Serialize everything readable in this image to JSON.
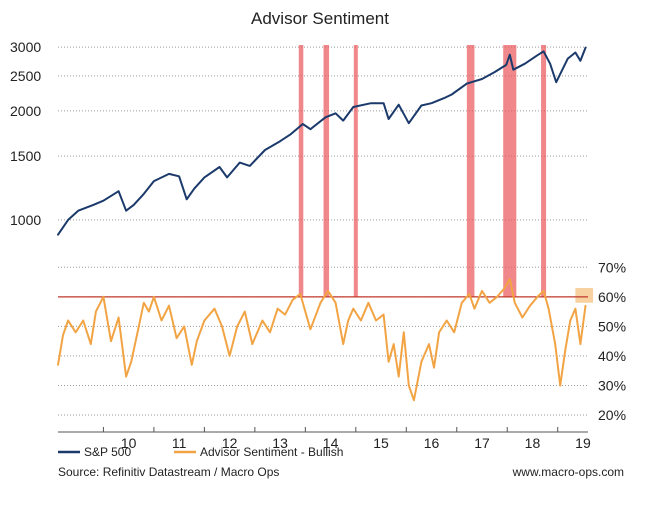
{
  "chart_data": {
    "type": "line",
    "title": "Advisor Sentiment",
    "x_ticks": [
      "10",
      "11",
      "12",
      "13",
      "14",
      "15",
      "16",
      "17",
      "18",
      "19"
    ],
    "x_range": [
      2009.1,
      2019.6
    ],
    "left_axis": {
      "scale": "log",
      "range": [
        800,
        3100
      ],
      "ticks": [
        "3000",
        "2500",
        "2000",
        "1500",
        "1000"
      ]
    },
    "right_axis": {
      "range": [
        20,
        85
      ],
      "ticks": [
        "70%",
        "60%",
        "50%",
        "40%",
        "30%",
        "20%"
      ]
    },
    "threshold": {
      "label": "60%",
      "value": 60
    },
    "series": [
      {
        "name": "S&P 500",
        "color": "#1b3a6b",
        "axis": "left",
        "points": [
          [
            2009.1,
            910
          ],
          [
            2009.3,
            1000
          ],
          [
            2009.5,
            1060
          ],
          [
            2009.8,
            1100
          ],
          [
            2010.0,
            1130
          ],
          [
            2010.3,
            1200
          ],
          [
            2010.45,
            1060
          ],
          [
            2010.6,
            1100
          ],
          [
            2010.8,
            1180
          ],
          [
            2011.0,
            1280
          ],
          [
            2011.3,
            1340
          ],
          [
            2011.5,
            1320
          ],
          [
            2011.65,
            1140
          ],
          [
            2011.8,
            1220
          ],
          [
            2012.0,
            1310
          ],
          [
            2012.3,
            1400
          ],
          [
            2012.45,
            1310
          ],
          [
            2012.7,
            1440
          ],
          [
            2012.9,
            1410
          ],
          [
            2013.2,
            1560
          ],
          [
            2013.5,
            1650
          ],
          [
            2013.7,
            1720
          ],
          [
            2013.95,
            1840
          ],
          [
            2014.1,
            1780
          ],
          [
            2014.4,
            1920
          ],
          [
            2014.6,
            1970
          ],
          [
            2014.75,
            1880
          ],
          [
            2014.95,
            2050
          ],
          [
            2015.3,
            2100
          ],
          [
            2015.55,
            2100
          ],
          [
            2015.65,
            1900
          ],
          [
            2015.85,
            2080
          ],
          [
            2016.05,
            1850
          ],
          [
            2016.3,
            2070
          ],
          [
            2016.5,
            2100
          ],
          [
            2016.75,
            2170
          ],
          [
            2016.9,
            2220
          ],
          [
            2017.2,
            2380
          ],
          [
            2017.5,
            2450
          ],
          [
            2017.75,
            2560
          ],
          [
            2017.98,
            2680
          ],
          [
            2018.05,
            2860
          ],
          [
            2018.12,
            2600
          ],
          [
            2018.35,
            2700
          ],
          [
            2018.6,
            2850
          ],
          [
            2018.72,
            2920
          ],
          [
            2018.85,
            2700
          ],
          [
            2018.97,
            2400
          ],
          [
            2019.2,
            2790
          ],
          [
            2019.35,
            2900
          ],
          [
            2019.45,
            2750
          ],
          [
            2019.55,
            2990
          ]
        ]
      },
      {
        "name": "Advisor Sentiment - Bullish",
        "color": "#f2a444",
        "axis": "right",
        "points": [
          [
            2009.1,
            37
          ],
          [
            2009.2,
            47
          ],
          [
            2009.3,
            52
          ],
          [
            2009.45,
            48
          ],
          [
            2009.6,
            52
          ],
          [
            2009.75,
            44
          ],
          [
            2009.85,
            55
          ],
          [
            2010.0,
            60
          ],
          [
            2010.15,
            45
          ],
          [
            2010.3,
            53
          ],
          [
            2010.45,
            33
          ],
          [
            2010.55,
            38
          ],
          [
            2010.7,
            50
          ],
          [
            2010.8,
            58
          ],
          [
            2010.9,
            55
          ],
          [
            2011.0,
            60
          ],
          [
            2011.15,
            52
          ],
          [
            2011.3,
            57
          ],
          [
            2011.45,
            46
          ],
          [
            2011.6,
            50
          ],
          [
            2011.75,
            37
          ],
          [
            2011.85,
            45
          ],
          [
            2012.0,
            52
          ],
          [
            2012.2,
            56
          ],
          [
            2012.35,
            50
          ],
          [
            2012.5,
            40
          ],
          [
            2012.65,
            50
          ],
          [
            2012.8,
            55
          ],
          [
            2012.95,
            44
          ],
          [
            2013.15,
            52
          ],
          [
            2013.3,
            48
          ],
          [
            2013.45,
            56
          ],
          [
            2013.6,
            54
          ],
          [
            2013.75,
            59
          ],
          [
            2013.9,
            61
          ],
          [
            2014.0,
            55
          ],
          [
            2014.1,
            49
          ],
          [
            2014.3,
            58
          ],
          [
            2014.45,
            62
          ],
          [
            2014.6,
            58
          ],
          [
            2014.75,
            44
          ],
          [
            2014.85,
            52
          ],
          [
            2014.95,
            56
          ],
          [
            2015.1,
            52
          ],
          [
            2015.25,
            58
          ],
          [
            2015.4,
            52
          ],
          [
            2015.55,
            54
          ],
          [
            2015.65,
            38
          ],
          [
            2015.75,
            44
          ],
          [
            2015.85,
            33
          ],
          [
            2015.95,
            48
          ],
          [
            2016.05,
            30
          ],
          [
            2016.15,
            25
          ],
          [
            2016.3,
            38
          ],
          [
            2016.45,
            44
          ],
          [
            2016.55,
            36
          ],
          [
            2016.65,
            48
          ],
          [
            2016.8,
            52
          ],
          [
            2016.95,
            48
          ],
          [
            2017.1,
            58
          ],
          [
            2017.25,
            61
          ],
          [
            2017.35,
            56
          ],
          [
            2017.5,
            62
          ],
          [
            2017.65,
            58
          ],
          [
            2017.8,
            60
          ],
          [
            2017.95,
            63
          ],
          [
            2018.05,
            66
          ],
          [
            2018.15,
            58
          ],
          [
            2018.3,
            53
          ],
          [
            2018.45,
            57
          ],
          [
            2018.6,
            60
          ],
          [
            2018.72,
            62
          ],
          [
            2018.82,
            56
          ],
          [
            2018.95,
            44
          ],
          [
            2019.05,
            30
          ],
          [
            2019.15,
            42
          ],
          [
            2019.25,
            52
          ],
          [
            2019.35,
            56
          ],
          [
            2019.45,
            44
          ],
          [
            2019.55,
            57
          ]
        ]
      }
    ],
    "highlight_bands": [
      {
        "x0": 2013.87,
        "x1": 2013.96
      },
      {
        "x0": 2014.36,
        "x1": 2014.47
      },
      {
        "x0": 2014.96,
        "x1": 2015.04
      },
      {
        "x0": 2017.2,
        "x1": 2017.35
      },
      {
        "x0": 2017.92,
        "x1": 2018.18
      },
      {
        "x0": 2018.67,
        "x1": 2018.77
      }
    ],
    "current_band": {
      "x0": 2019.35,
      "x1": 2019.7,
      "y0": 58,
      "y1": 63
    },
    "legend": [
      "S&P 500",
      "Advisor Sentiment - Bullish"
    ],
    "source": "Source: Refinitiv Datastream / Macro Ops",
    "website": "www.macro-ops.com"
  },
  "colors": {
    "sp500": "#1b3a6b",
    "sentiment": "#f2a444",
    "band": "#e9555a",
    "threshold": "#c0392b",
    "current_band": "#f6c98e",
    "grid": "#9a9a9a",
    "text": "#222222"
  }
}
